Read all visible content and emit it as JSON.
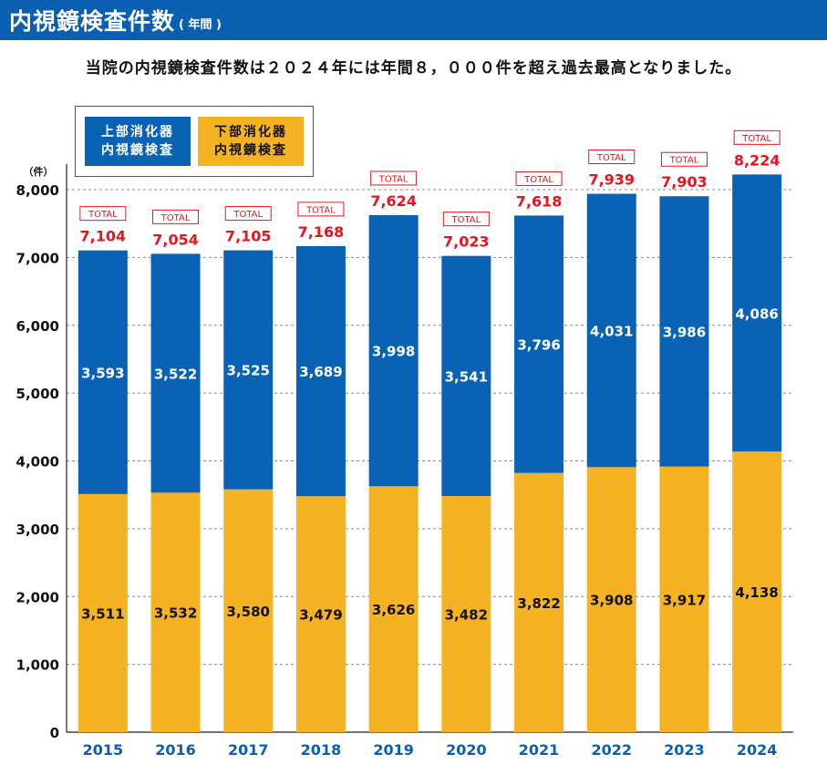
{
  "header": {
    "title": "内視鏡検査件数",
    "title_unit": "( 年間 )"
  },
  "subtitle": "当院の内視鏡検査件数は２０２４年には年間８，０００件を超え過去最高となりました。",
  "legend": {
    "upper_line1": "上部消化器",
    "upper_line2": "内視鏡検査",
    "lower_line1": "下部消化器",
    "lower_line2": "内視鏡検査"
  },
  "colors": {
    "title_bar": "#0a5fb0",
    "upper": "#0a62b4",
    "lower": "#f5b323",
    "total_text": "#e8131c",
    "year_text": "#0a5fb0"
  },
  "chart_data": {
    "type": "bar",
    "stacked": true,
    "ylabel": "（件）",
    "ylim": [
      0,
      8000
    ],
    "yticks": [
      0,
      1000,
      2000,
      3000,
      4000,
      5000,
      6000,
      7000,
      8000
    ],
    "ytick_labels": [
      "0",
      "1,000",
      "2,000",
      "3,000",
      "4,000",
      "5,000",
      "6,000",
      "7,000",
      "8,000"
    ],
    "grid": "horizontal-dashed",
    "legend_position": "top-left",
    "total_tag": "TOTAL",
    "categories": [
      "2015",
      "2016",
      "2017",
      "2018",
      "2019",
      "2020",
      "2021",
      "2022",
      "2023",
      "2024"
    ],
    "series": [
      {
        "name": "下部消化器内視鏡検査",
        "values": [
          3511,
          3532,
          3580,
          3479,
          3626,
          3482,
          3822,
          3908,
          3917,
          4138
        ],
        "labels": [
          "3,511",
          "3,532",
          "3,580",
          "3,479",
          "3,626",
          "3,482",
          "3,822",
          "3,908",
          "3,917",
          "4,138"
        ]
      },
      {
        "name": "上部消化器内視鏡検査",
        "values": [
          3593,
          3522,
          3525,
          3689,
          3998,
          3541,
          3796,
          4031,
          3986,
          4086
        ],
        "labels": [
          "3,593",
          "3,522",
          "3,525",
          "3,689",
          "3,998",
          "3,541",
          "3,796",
          "4,031",
          "3,986",
          "4,086"
        ]
      }
    ],
    "totals": [
      7104,
      7054,
      7105,
      7168,
      7624,
      7023,
      7618,
      7939,
      7903,
      8224
    ],
    "total_labels": [
      "7,104",
      "7,054",
      "7,105",
      "7,168",
      "7,624",
      "7,023",
      "7,618",
      "7,939",
      "7,903",
      "8,224"
    ]
  }
}
